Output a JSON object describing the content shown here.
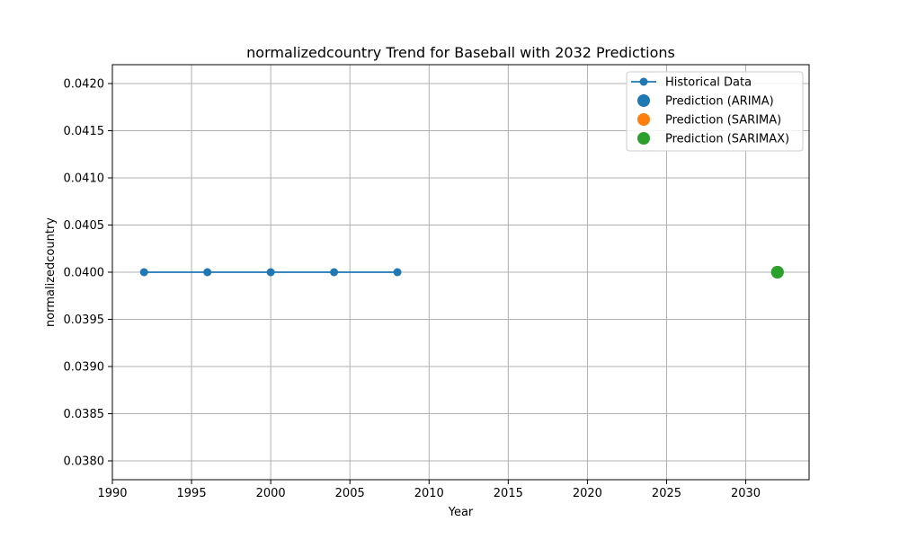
{
  "chart_data": {
    "type": "line",
    "title": "normalizedcountry Trend for Baseball with 2032 Predictions",
    "xlabel": "Year",
    "ylabel": "normalizedcountry",
    "xlim": [
      1990,
      2034
    ],
    "ylim": [
      0.0378,
      0.0422
    ],
    "x_ticks": [
      1990,
      1995,
      2000,
      2005,
      2010,
      2015,
      2020,
      2025,
      2030
    ],
    "y_ticks": [
      0.038,
      0.0385,
      0.039,
      0.0395,
      0.04,
      0.0405,
      0.041,
      0.0415,
      0.042
    ],
    "y_tick_labels": [
      "0.0380",
      "0.0385",
      "0.0390",
      "0.0395",
      "0.0400",
      "0.0405",
      "0.0410",
      "0.0415",
      "0.0420"
    ],
    "grid": true,
    "legend_position": "top-right",
    "series": [
      {
        "name": "Historical Data",
        "kind": "line-markers",
        "color": "#1f77b4",
        "x": [
          1992,
          1996,
          2000,
          2004,
          2008
        ],
        "y": [
          0.04,
          0.04,
          0.04,
          0.04,
          0.04
        ]
      },
      {
        "name": "Prediction (ARIMA)",
        "kind": "scatter",
        "color": "#1f77b4",
        "x": [
          2032
        ],
        "y": [
          0.04
        ]
      },
      {
        "name": "Prediction (SARIMA)",
        "kind": "scatter",
        "color": "#ff7f0e",
        "x": [
          2032
        ],
        "y": [
          0.04
        ]
      },
      {
        "name": "Prediction (SARIMAX)",
        "kind": "scatter",
        "color": "#2ca02c",
        "x": [
          2032
        ],
        "y": [
          0.04
        ]
      }
    ]
  }
}
